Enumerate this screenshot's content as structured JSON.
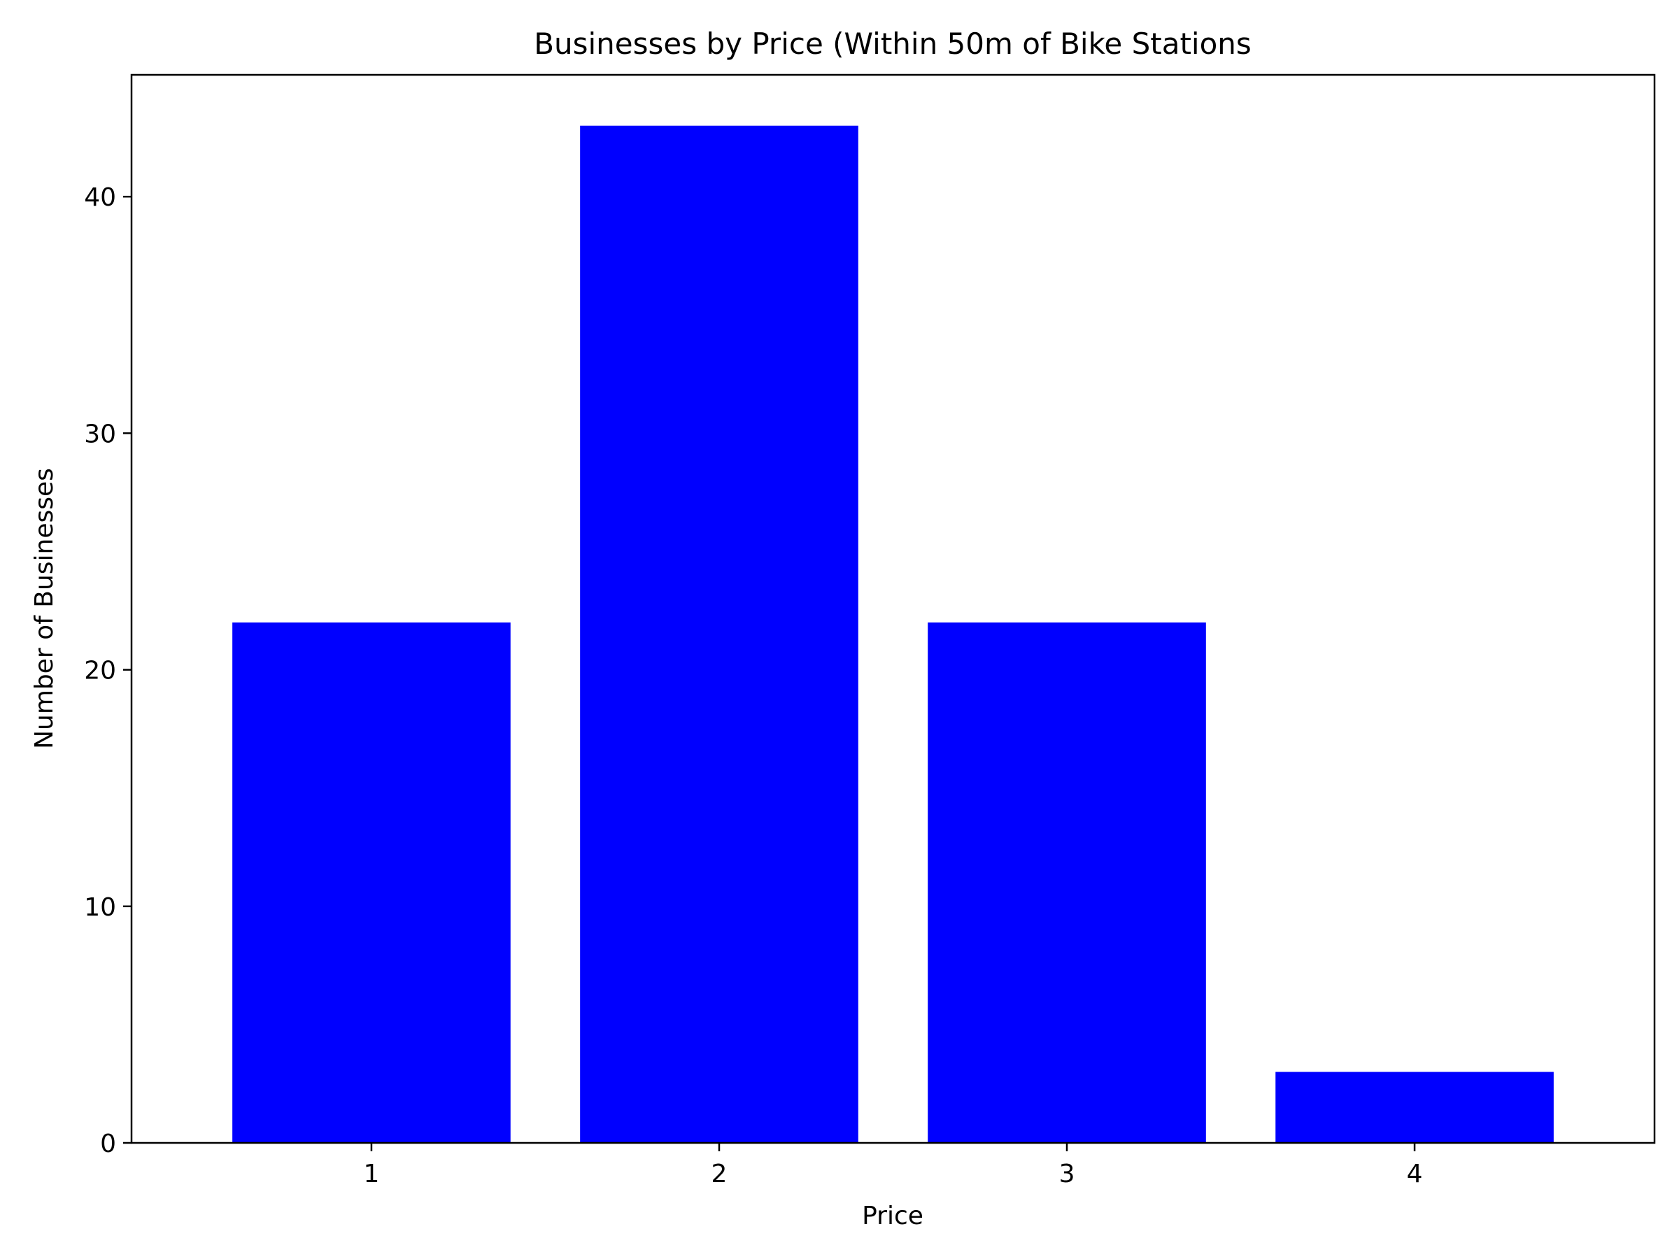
{
  "chart_data": {
    "type": "bar",
    "title": "Businesses by Price (Within 50m of Bike Stations",
    "xlabel": "Price",
    "ylabel": "Number of Businesses",
    "categories": [
      "1",
      "2",
      "3",
      "4"
    ],
    "values": [
      22,
      43,
      22,
      3
    ],
    "x_ticks": [
      "1",
      "2",
      "3",
      "4"
    ],
    "y_ticks": [
      "0",
      "10",
      "20",
      "30",
      "40"
    ],
    "ylim": [
      0,
      45.15
    ],
    "bar_color": "#0000ff",
    "grid": false,
    "legend": "none"
  }
}
